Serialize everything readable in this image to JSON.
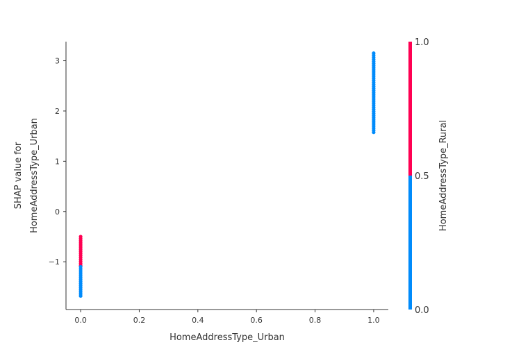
{
  "chart_data": {
    "type": "scatter",
    "xlabel": "HomeAddressType_Urban",
    "ylabel_lines": [
      "SHAP value for",
      "HomeAddressType_Urban"
    ],
    "xlim": [
      -0.05,
      1.05
    ],
    "ylim": [
      -1.95,
      3.38
    ],
    "xticks": [
      0.0,
      0.2,
      0.4,
      0.6,
      0.8,
      1.0
    ],
    "xtick_labels": [
      "0.0",
      "0.2",
      "0.4",
      "0.6",
      "0.8",
      "1.0"
    ],
    "yticks": [
      -1,
      0,
      1,
      2,
      3
    ],
    "ytick_labels": [
      "−1",
      "0",
      "1",
      "2",
      "3"
    ],
    "colors": {
      "low": "#008bfb",
      "high": "#ff0052"
    },
    "colorbar": {
      "label": "HomeAddressType_Rural",
      "range": [
        0.0,
        1.0
      ],
      "ticks": [
        0.0,
        0.5,
        1.0
      ],
      "tick_labels": [
        "0.0",
        "0.5",
        "1.0"
      ]
    },
    "series": [
      {
        "x": 0.0,
        "color_value": 1.0,
        "y_min": -1.08,
        "y_max": -0.5
      },
      {
        "x": 0.0,
        "color_value": 0.0,
        "y_min": -1.7,
        "y_max": -1.1
      },
      {
        "x": 1.0,
        "color_value": 0.0,
        "y_min": 1.55,
        "y_max": 3.15
      }
    ]
  }
}
